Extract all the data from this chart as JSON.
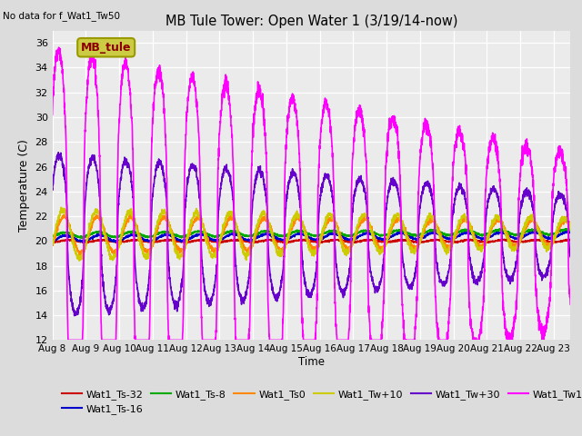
{
  "title": "MB Tule Tower: Open Water 1 (3/19/14-now)",
  "no_data_text": "No data for f_Wat1_Tw50",
  "xlabel": "Time",
  "ylabel": "Temperature (C)",
  "ylim": [
    12,
    37
  ],
  "yticks": [
    12,
    14,
    16,
    18,
    20,
    22,
    24,
    26,
    28,
    30,
    32,
    34,
    36
  ],
  "x_tick_labels": [
    "Aug 8",
    "Aug 9",
    "Aug 10",
    "Aug 11",
    "Aug 12",
    "Aug 13",
    "Aug 14",
    "Aug 15",
    "Aug 16",
    "Aug 17",
    "Aug 18",
    "Aug 19",
    "Aug 20",
    "Aug 21",
    "Aug 22",
    "Aug 23"
  ],
  "background_color": "#dcdcdc",
  "plot_bg_color": "#ebebeb",
  "grid_color": "#ffffff",
  "legend_box_facecolor": "#cccc44",
  "legend_box_edgecolor": "#999900",
  "legend_box_text": "MB_tule",
  "legend_box_text_color": "#8B0000",
  "colors": {
    "Wat1_Ts-32": "#cc0000",
    "Wat1_Ts-16": "#0000cc",
    "Wat1_Ts-8": "#00aa00",
    "Wat1_Ts0": "#ff8800",
    "Wat1_Tw+10": "#cccc00",
    "Wat1_Tw+30": "#6600cc",
    "Wat1_Tw100": "#ff00ff"
  },
  "figsize": [
    6.4,
    4.8
  ],
  "dpi": 100
}
